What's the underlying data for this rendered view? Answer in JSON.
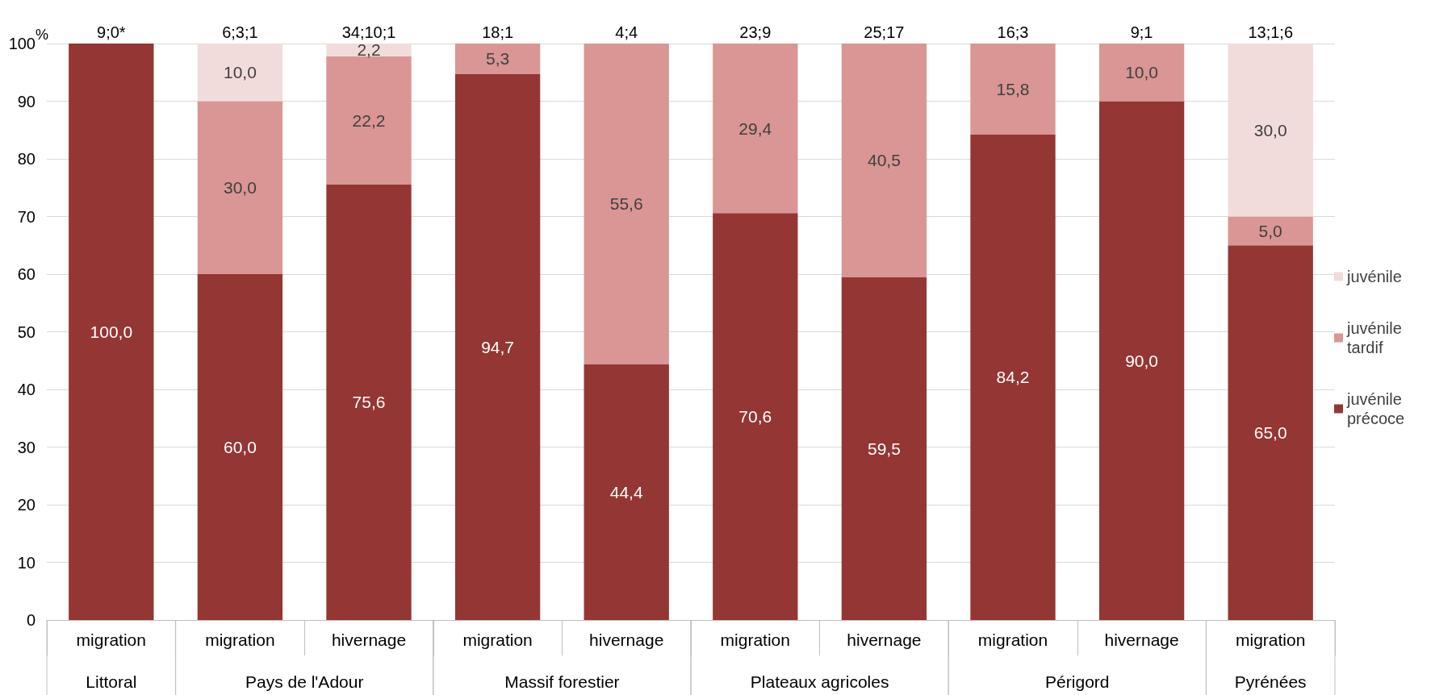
{
  "chart_data": {
    "type": "bar",
    "stacked": true,
    "ylabel": "%",
    "categories": [
      "migration",
      "migration",
      "hivernage",
      "migration",
      "hivernage",
      "migration",
      "hivernage",
      "migration",
      "hivernage",
      "migration"
    ],
    "series": [
      {
        "name": "juvénile précoce",
        "color": "#943634",
        "values": [
          100.0,
          60.0,
          75.6,
          94.7,
          44.4,
          70.6,
          59.5,
          84.2,
          90.0,
          65.0
        ],
        "value_labels": [
          "100,0",
          "60,0",
          "75,6",
          "94,7",
          "44,4",
          "70,6",
          "59,5",
          "84,2",
          "90,0",
          "65,0"
        ]
      },
      {
        "name": "juvénile tardif",
        "color": "#d99694",
        "values": [
          null,
          30.0,
          22.2,
          5.3,
          55.6,
          29.4,
          40.5,
          15.8,
          10.0,
          5.0
        ],
        "value_labels": [
          null,
          "30,0",
          "22,2",
          "5,3",
          "55,6",
          "29,4",
          "40,5",
          "15,8",
          "10,0",
          "5,0"
        ]
      },
      {
        "name": "juvénile",
        "color": "#f2dcdb",
        "values": [
          null,
          10.0,
          2.2,
          null,
          null,
          null,
          null,
          null,
          null,
          30.0
        ],
        "value_labels": [
          null,
          "10,0",
          "2,2",
          null,
          null,
          null,
          null,
          null,
          null,
          "30,0"
        ]
      }
    ],
    "totals": [
      "9;0*",
      "6;3;1",
      "34;10;1",
      "18;1",
      "4;4",
      "23;9",
      "25;17",
      "16;3",
      "9;1",
      "13;1;6"
    ],
    "annotations": [
      "Littoral",
      "Pays de l'Adour",
      "Massif forestier",
      "Plateaux agricoles",
      "Périgord",
      "Pyrénées"
    ],
    "ylim": [
      0,
      100
    ],
    "yticks": [
      0,
      10,
      20,
      30,
      40,
      50,
      60,
      70,
      80,
      90,
      100
    ],
    "grid": "y",
    "legend": "right"
  }
}
